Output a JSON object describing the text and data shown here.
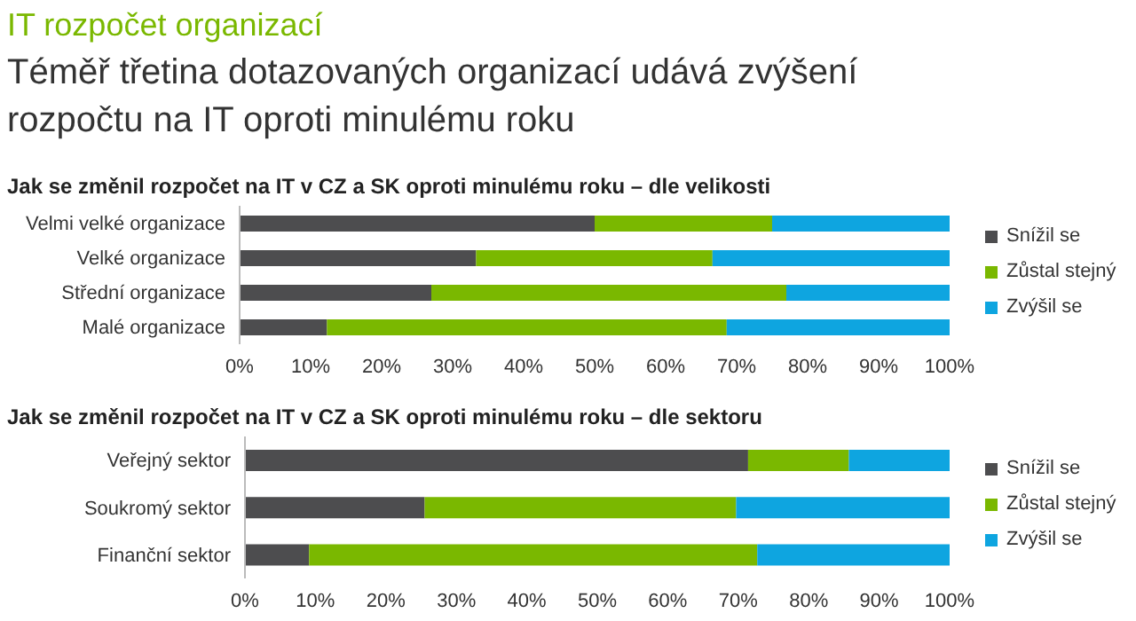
{
  "chart_data": [
    {
      "type": "bar",
      "orientation": "horizontal",
      "stacked": true,
      "title": "Jak se změnil rozpočet na IT v CZ a SK oproti minulému roku – dle velikosti",
      "annotations": [
        "IT rozpočet organizací",
        "Téměř třetina dotazovaných organizací udává zvýšení rozpočtu na IT oproti minulému roku"
      ],
      "categories": [
        "Velmi velké organizace",
        "Velké organizace",
        "Střední organizace",
        "Malé organizace"
      ],
      "series": [
        {
          "name": "Snížil se",
          "color": "#4d4d4f",
          "values": [
            50,
            33.3,
            27,
            12.3
          ]
        },
        {
          "name": "Zůstal stejný",
          "color": "#7ab800",
          "values": [
            25,
            33.3,
            50,
            56.3
          ]
        },
        {
          "name": "Zvýšil se",
          "color": "#0ea5e0",
          "values": [
            25,
            33.4,
            23,
            31.4
          ]
        }
      ],
      "xlim": [
        0,
        100
      ],
      "xticks": [
        {
          "value": 0,
          "label": "0%"
        },
        {
          "value": 10,
          "label": "10%"
        },
        {
          "value": 20,
          "label": "20%"
        },
        {
          "value": 30,
          "label": "30%"
        },
        {
          "value": 40,
          "label": "40%"
        },
        {
          "value": 50,
          "label": "50%"
        },
        {
          "value": 60,
          "label": "60%"
        },
        {
          "value": 70,
          "label": "70%"
        },
        {
          "value": 80,
          "label": "80%"
        },
        {
          "value": 90,
          "label": "90%"
        },
        {
          "value": 100,
          "label": "100%"
        }
      ],
      "legend": "right"
    },
    {
      "type": "bar",
      "orientation": "horizontal",
      "stacked": true,
      "title": "Jak se změnil rozpočet na IT v CZ a SK oproti minulému roku – dle sektoru",
      "categories": [
        "Veřejný sektor",
        "Soukromý sektor",
        "Finanční sektor"
      ],
      "series": [
        {
          "name": "Snížil se",
          "color": "#4d4d4f",
          "values": [
            71.4,
            25.5,
            9.1
          ]
        },
        {
          "name": "Zůstal stejný",
          "color": "#7ab800",
          "values": [
            14.3,
            44.2,
            63.6
          ]
        },
        {
          "name": "Zvýšil se",
          "color": "#0ea5e0",
          "values": [
            14.3,
            30.3,
            27.3
          ]
        }
      ],
      "xlim": [
        0,
        100
      ],
      "xticks": [
        {
          "value": 0,
          "label": "0%"
        },
        {
          "value": 10,
          "label": "10%"
        },
        {
          "value": 20,
          "label": "20%"
        },
        {
          "value": 30,
          "label": "30%"
        },
        {
          "value": 40,
          "label": "40%"
        },
        {
          "value": 50,
          "label": "50%"
        },
        {
          "value": 60,
          "label": "60%"
        },
        {
          "value": 70,
          "label": "70%"
        },
        {
          "value": 80,
          "label": "80%"
        },
        {
          "value": 90,
          "label": "90%"
        },
        {
          "value": 100,
          "label": "100%"
        }
      ],
      "legend": "right"
    }
  ]
}
